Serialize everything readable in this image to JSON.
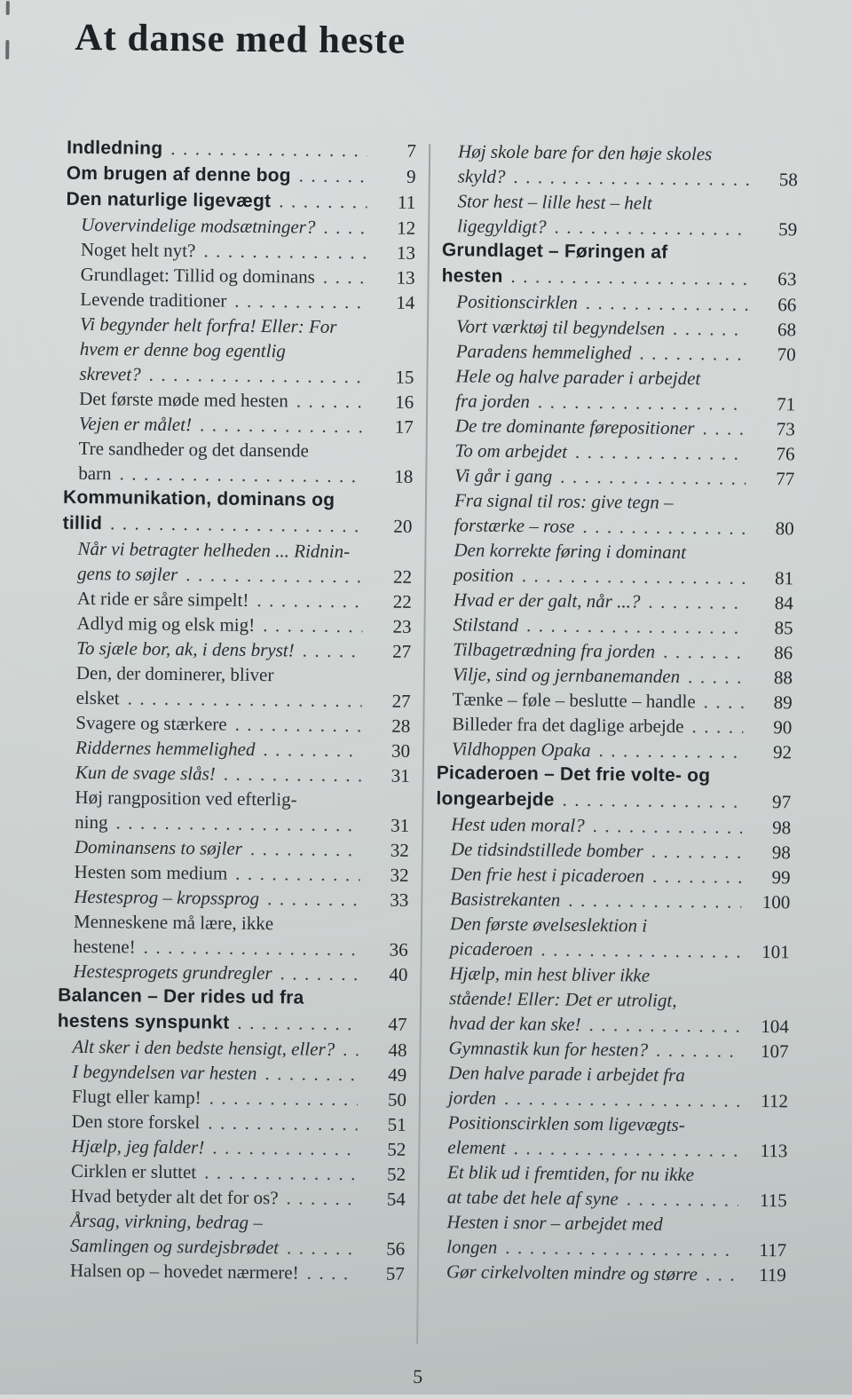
{
  "page": {
    "title": "At danse med heste",
    "page_number": "5",
    "leader": "............................................................"
  },
  "toc": {
    "left_column": [
      {
        "lines": [
          "Indledning"
        ],
        "page": "7",
        "style": "bold"
      },
      {
        "lines": [
          "Om brugen af denne bog"
        ],
        "page": "9",
        "style": "bold"
      },
      {
        "lines": [
          "Den naturlige ligevægt"
        ],
        "page": "11",
        "style": "bold"
      },
      {
        "lines": [
          "Uovervindelige modsætninger?"
        ],
        "page": "12",
        "style": "italic"
      },
      {
        "lines": [
          "Noget helt nyt?"
        ],
        "page": "13",
        "style": "roman"
      },
      {
        "lines": [
          "Grundlaget: Tillid og dominans"
        ],
        "page": "13",
        "style": "roman"
      },
      {
        "lines": [
          "Levende traditioner"
        ],
        "page": "14",
        "style": "roman"
      },
      {
        "lines": [
          "Vi begynder helt forfra! Eller: For",
          "hvem er denne bog egentlig",
          "skrevet?"
        ],
        "page": "15",
        "style": "italic"
      },
      {
        "lines": [
          "Det første møde med hesten"
        ],
        "page": "16",
        "style": "roman"
      },
      {
        "lines": [
          "Vejen er målet!"
        ],
        "page": "17",
        "style": "italic"
      },
      {
        "lines": [
          "Tre sandheder og det dansende",
          "barn"
        ],
        "page": "18",
        "style": "roman"
      },
      {
        "lines": [
          "Kommunikation, dominans og",
          "tillid"
        ],
        "page": "20",
        "style": "bold"
      },
      {
        "lines": [
          "Når vi betragter helheden ... Ridnin-",
          "gens to søjler"
        ],
        "page": "22",
        "style": "italic"
      },
      {
        "lines": [
          "At ride er såre simpelt!"
        ],
        "page": "22",
        "style": "roman"
      },
      {
        "lines": [
          "Adlyd mig og elsk mig!"
        ],
        "page": "23",
        "style": "roman"
      },
      {
        "lines": [
          "To sjæle bor, ak, i dens bryst!"
        ],
        "page": "27",
        "style": "italic"
      },
      {
        "lines": [
          "Den, der dominerer, bliver",
          "elsket"
        ],
        "page": "27",
        "style": "roman"
      },
      {
        "lines": [
          "Svagere og stærkere"
        ],
        "page": "28",
        "style": "roman"
      },
      {
        "lines": [
          "Riddernes hemmelighed"
        ],
        "page": "30",
        "style": "italic"
      },
      {
        "lines": [
          "Kun de svage slås!"
        ],
        "page": "31",
        "style": "italic"
      },
      {
        "lines": [
          "Høj rangposition ved efterlig-",
          "ning"
        ],
        "page": "31",
        "style": "roman"
      },
      {
        "lines": [
          "Dominansens to søjler"
        ],
        "page": "32",
        "style": "italic"
      },
      {
        "lines": [
          "Hesten som medium"
        ],
        "page": "32",
        "style": "roman"
      },
      {
        "lines": [
          "Hestesprog – kropssprog"
        ],
        "page": "33",
        "style": "italic"
      },
      {
        "lines": [
          "Menneskene må lære, ikke",
          "hestene!"
        ],
        "page": "36",
        "style": "roman"
      },
      {
        "lines": [
          "Hestesprogets grundregler"
        ],
        "page": "40",
        "style": "italic"
      },
      {
        "lines": [
          "Balancen – Der rides ud fra",
          "hestens synspunkt"
        ],
        "page": "47",
        "style": "bold"
      },
      {
        "lines": [
          "Alt sker i den bedste hensigt, eller?"
        ],
        "page": "48",
        "style": "italic"
      },
      {
        "lines": [
          "I begyndelsen var hesten"
        ],
        "page": "49",
        "style": "italic"
      },
      {
        "lines": [
          "Flugt eller kamp!"
        ],
        "page": "50",
        "style": "roman"
      },
      {
        "lines": [
          "Den store forskel"
        ],
        "page": "51",
        "style": "roman"
      },
      {
        "lines": [
          "Hjælp, jeg falder!"
        ],
        "page": "52",
        "style": "italic"
      },
      {
        "lines": [
          "Cirklen er sluttet"
        ],
        "page": "52",
        "style": "roman"
      },
      {
        "lines": [
          "Hvad betyder alt det for os?"
        ],
        "page": "54",
        "style": "roman"
      },
      {
        "lines": [
          "Årsag, virkning, bedrag –",
          "Samlingen og surdejsbrødet"
        ],
        "page": "56",
        "style": "italic"
      },
      {
        "lines": [
          "Halsen op – hovedet nærmere!"
        ],
        "page": "57",
        "style": "roman"
      }
    ],
    "right_column": [
      {
        "lines": [
          "Høj skole bare for den høje skoles",
          "skyld?"
        ],
        "page": "58",
        "style": "italic"
      },
      {
        "lines": [
          "Stor hest – lille hest – helt",
          "ligegyldigt?"
        ],
        "page": "59",
        "style": "italic"
      },
      {
        "lines": [
          "Grundlaget – Føringen af",
          "hesten"
        ],
        "page": "63",
        "style": "bold"
      },
      {
        "lines": [
          "Positionscirklen"
        ],
        "page": "66",
        "style": "italic"
      },
      {
        "lines": [
          "Vort værktøj til begyndelsen"
        ],
        "page": "68",
        "style": "italic"
      },
      {
        "lines": [
          "Paradens hemmelighed"
        ],
        "page": "70",
        "style": "italic"
      },
      {
        "lines": [
          "Hele og halve parader i arbejdet",
          "fra jorden"
        ],
        "page": "71",
        "style": "italic"
      },
      {
        "lines": [
          "De tre dominante førepositioner"
        ],
        "page": "73",
        "style": "italic"
      },
      {
        "lines": [
          "To om arbejdet"
        ],
        "page": "76",
        "style": "italic"
      },
      {
        "lines": [
          "Vi går i gang"
        ],
        "page": "77",
        "style": "italic"
      },
      {
        "lines": [
          "Fra signal til ros: give tegn –",
          "forstærke – rose"
        ],
        "page": "80",
        "style": "italic"
      },
      {
        "lines": [
          "Den korrekte føring i dominant",
          "position"
        ],
        "page": "81",
        "style": "italic"
      },
      {
        "lines": [
          "Hvad er der galt, når ...?"
        ],
        "page": "84",
        "style": "italic"
      },
      {
        "lines": [
          "Stilstand"
        ],
        "page": "85",
        "style": "italic"
      },
      {
        "lines": [
          "Tilbagetrædning fra jorden"
        ],
        "page": "86",
        "style": "italic"
      },
      {
        "lines": [
          "Vilje, sind og jernbanemanden"
        ],
        "page": "88",
        "style": "italic"
      },
      {
        "lines": [
          "Tænke – føle – beslutte – handle"
        ],
        "page": "89",
        "style": "roman"
      },
      {
        "lines": [
          "Billeder fra det daglige arbejde"
        ],
        "page": "90",
        "style": "roman"
      },
      {
        "lines": [
          "Vildhoppen Opaka"
        ],
        "page": "92",
        "style": "italic"
      },
      {
        "lines": [
          "Picaderoen – Det frie volte- og",
          "longearbejde"
        ],
        "page": "97",
        "style": "bold"
      },
      {
        "lines": [
          "Hest uden moral?"
        ],
        "page": "98",
        "style": "italic"
      },
      {
        "lines": [
          "De tidsindstillede bomber"
        ],
        "page": "98",
        "style": "italic"
      },
      {
        "lines": [
          "Den frie hest i picaderoen"
        ],
        "page": "99",
        "style": "italic"
      },
      {
        "lines": [
          "Basistrekanten"
        ],
        "page": "100",
        "style": "italic"
      },
      {
        "lines": [
          "Den første øvelseslektion i",
          "picaderoen"
        ],
        "page": "101",
        "style": "italic"
      },
      {
        "lines": [
          "Hjælp, min hest bliver ikke",
          "stående! Eller: Det er utroligt,",
          "hvad der kan ske!"
        ],
        "page": "104",
        "style": "italic"
      },
      {
        "lines": [
          "Gymnastik kun for hesten?"
        ],
        "page": "107",
        "style": "italic"
      },
      {
        "lines": [
          "Den halve parade i arbejdet fra",
          "jorden"
        ],
        "page": "112",
        "style": "italic"
      },
      {
        "lines": [
          "Positionscirklen som ligevægts-",
          "element"
        ],
        "page": "113",
        "style": "italic"
      },
      {
        "lines": [
          "Et blik ud i fremtiden, for nu ikke",
          "at tabe det hele af syne"
        ],
        "page": "115",
        "style": "italic"
      },
      {
        "lines": [
          "Hesten i snor – arbejdet med",
          "longen"
        ],
        "page": "117",
        "style": "italic"
      },
      {
        "lines": [
          "Gør cirkelvolten mindre og større"
        ],
        "page": "119",
        "style": "italic"
      }
    ]
  }
}
